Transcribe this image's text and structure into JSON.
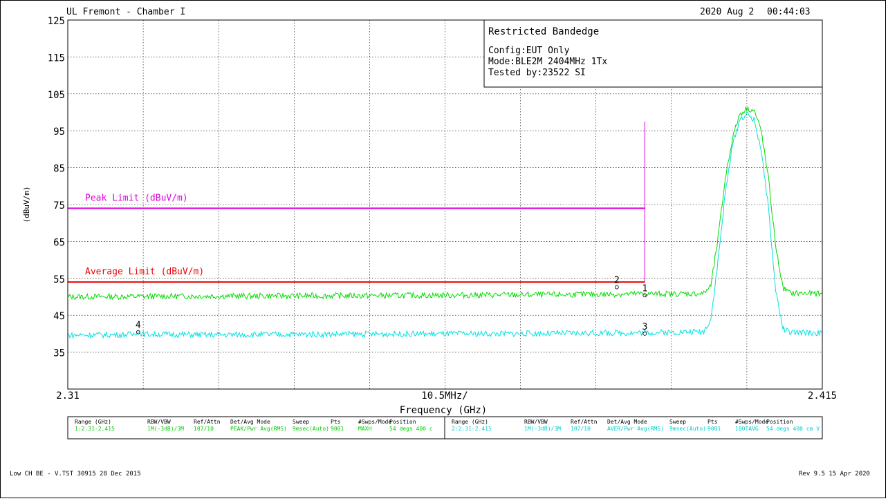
{
  "header": {
    "title": "UL Fremont - Chamber I",
    "date": "2020 Aug 2",
    "time": "00:44:03"
  },
  "info_box": {
    "title": "Restricted Bandedge",
    "lines": [
      "Config:EUT Only",
      "Mode:BLE2M 2404MHz 1Tx",
      "Tested by:23522 SI"
    ]
  },
  "footer": {
    "left": "Low CH BE - V.TST 30915 28 Dec 2015",
    "right": "Rev 9.5 15 Apr 2020"
  },
  "settings_table": {
    "headers": [
      "Range (GHz)",
      "RBW/VBW",
      "Ref/Attn",
      "Det/Avg Mode",
      "Sweep",
      "Pts",
      "#Swps/Mode",
      "Position"
    ],
    "rows": [
      {
        "color": "#00cc00",
        "cells": [
          "1:2.31-2.415",
          "1M(-3dB)/3M",
          "107/10",
          "PEAK/Pwr Avg(RMS)",
          "9msec(Auto)",
          "9001",
          "MAXH",
          "54 degs 400 c"
        ]
      },
      {
        "color": "#00cccc",
        "cells": [
          "2:2.31-2.415",
          "1M(-3dB)/3M",
          "107/10",
          "AVER/Pwr Avg(RMS)",
          "9msec(Auto)",
          "9001",
          "100TAVG",
          "54 degs 400 cm V"
        ]
      }
    ]
  },
  "colors": {
    "peak_trace": "#00dd00",
    "avg_trace": "#00e0e0",
    "peak_limit": "#dd00dd",
    "avg_limit": "#ee0000",
    "grid": "#000000"
  },
  "chart_data": {
    "type": "line",
    "title": "",
    "xlabel": "Frequency (GHz)",
    "ylabel": "(dBuV/m)",
    "x_center_label": "10.5MHz/",
    "x_tick_labels": [
      "2.31",
      "2.415"
    ],
    "xlim": [
      2.31,
      2.415
    ],
    "ylim": [
      25,
      125
    ],
    "y_ticks": [
      125,
      115,
      105,
      95,
      85,
      75,
      65,
      55,
      45,
      35
    ],
    "grid": true,
    "limits": [
      {
        "name": "Peak Limit (dBuV/m)",
        "value": 74,
        "x_range": [
          2.31,
          2.3903
        ],
        "color": "#dd00dd"
      },
      {
        "name": "Average Limit (dBuV/m)",
        "value": 54,
        "x_range": [
          2.31,
          2.3903
        ],
        "color": "#ee0000"
      }
    ],
    "band_edge_line": {
      "x": 2.3903,
      "y_range": [
        54,
        97.5
      ]
    },
    "series": [
      {
        "color": "#00dd00",
        "x": [
          2.31,
          2.33,
          2.35,
          2.37,
          2.38,
          2.39,
          2.395,
          2.3985,
          2.3995,
          2.4005,
          2.4015,
          2.4025,
          2.4035,
          2.4045,
          2.4055,
          2.4065,
          2.4075,
          2.4085,
          2.4095,
          2.4105,
          2.415
        ],
        "y": [
          50.0,
          50.2,
          50.3,
          50.5,
          50.6,
          50.8,
          50.8,
          50.9,
          53.0,
          66.0,
          82.0,
          93.0,
          99.5,
          101.0,
          100.5,
          95.0,
          82.0,
          64.0,
          52.5,
          51.0,
          50.8
        ]
      },
      {
        "color": "#00e0e0",
        "x": [
          2.31,
          2.319,
          2.3197,
          2.3205,
          2.33,
          2.35,
          2.37,
          2.38,
          2.39,
          2.395,
          2.3985,
          2.3995,
          2.4005,
          2.4015,
          2.4025,
          2.4035,
          2.4045,
          2.4055,
          2.4065,
          2.4075,
          2.4085,
          2.4095,
          2.4105,
          2.415
        ],
        "y": [
          39.6,
          39.8,
          40.6,
          39.9,
          39.7,
          39.9,
          40.0,
          40.1,
          40.3,
          40.4,
          40.6,
          44.0,
          60.0,
          78.0,
          91.0,
          98.0,
          99.5,
          98.0,
          90.0,
          74.0,
          52.0,
          41.5,
          40.3,
          40.2
        ]
      }
    ],
    "markers": [
      {
        "label": "1",
        "x": 2.3903,
        "y": 50.6
      },
      {
        "label": "2",
        "x": 2.3864,
        "y": 52.8
      },
      {
        "label": "3",
        "x": 2.3903,
        "y": 40.2
      },
      {
        "label": "4",
        "x": 2.3198,
        "y": 40.6
      }
    ]
  }
}
